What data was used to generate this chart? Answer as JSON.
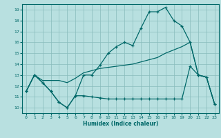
{
  "xlabel": "Humidex (Indice chaleur)",
  "xlim": [
    -0.5,
    23.5
  ],
  "ylim": [
    9.5,
    19.5
  ],
  "xticks": [
    0,
    1,
    2,
    3,
    4,
    5,
    6,
    7,
    8,
    9,
    10,
    11,
    12,
    13,
    14,
    15,
    16,
    17,
    18,
    19,
    20,
    21,
    22,
    23
  ],
  "yticks": [
    10,
    11,
    12,
    13,
    14,
    15,
    16,
    17,
    18,
    19
  ],
  "background_color": "#b8e0e0",
  "grid_color": "#88bbbb",
  "line_color": "#006868",
  "line1_x": [
    0,
    1,
    2,
    3,
    4,
    5,
    6,
    7,
    8,
    9,
    10,
    11,
    12,
    13,
    14,
    15,
    16,
    17,
    18,
    19,
    20,
    21,
    22,
    23
  ],
  "line1_y": [
    11.5,
    13.0,
    12.3,
    11.5,
    10.5,
    10.0,
    11.1,
    13.0,
    13.0,
    13.9,
    15.0,
    15.6,
    16.0,
    15.7,
    17.3,
    18.8,
    18.8,
    19.2,
    18.0,
    17.5,
    16.0,
    13.0,
    12.8,
    10.3
  ],
  "line2_x": [
    0,
    1,
    2,
    3,
    4,
    5,
    6,
    7,
    8,
    9,
    10,
    11,
    12,
    13,
    14,
    15,
    16,
    17,
    18,
    19,
    20,
    21,
    22,
    23
  ],
  "line2_y": [
    11.5,
    13.0,
    12.5,
    12.5,
    12.5,
    12.3,
    12.7,
    13.2,
    13.4,
    13.6,
    13.7,
    13.8,
    13.9,
    14.0,
    14.2,
    14.4,
    14.6,
    15.0,
    15.3,
    15.6,
    16.0,
    13.0,
    12.8,
    10.3
  ],
  "line3_x": [
    0,
    1,
    2,
    3,
    4,
    5,
    6,
    7,
    8,
    9,
    10,
    11,
    12,
    13,
    14,
    15,
    16,
    17,
    18,
    19,
    20,
    21,
    22,
    23
  ],
  "line3_y": [
    11.5,
    13.0,
    12.3,
    11.5,
    10.5,
    10.0,
    11.1,
    11.1,
    11.0,
    10.9,
    10.8,
    10.8,
    10.8,
    10.8,
    10.8,
    10.8,
    10.8,
    10.8,
    10.8,
    10.8,
    13.8,
    13.0,
    12.8,
    10.3
  ]
}
